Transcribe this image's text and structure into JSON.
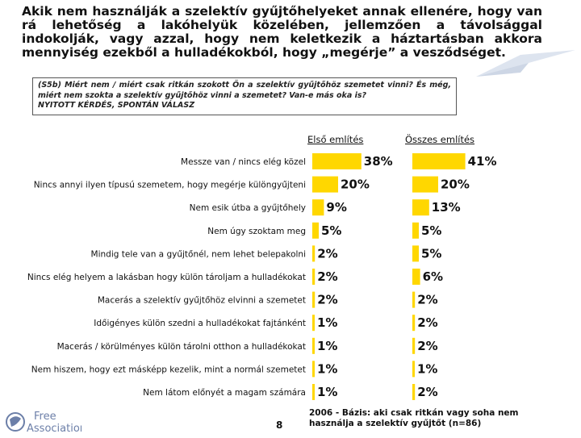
{
  "headline": "Akik nem használják a szelektív gyűjtőhelyeket annak ellenére, hogy van rá lehetőség a lakóhelyük közelében, jellemzően a távolsággal indokolják, vagy azzal, hogy nem keletkezik a háztartásban akkora mennyiség ezekből a hulladékokból, hogy „megérje” a vesződséget.",
  "question": {
    "text": "(S5b) Miért nem / miért csak ritkán szokott Ön a szelektív gyűjtőhöz szemetet vinni? És még, miért nem szokta a szelektív gyűjtőhöz vinni a szemetet? Van-e más oka is?",
    "note": "NYITOTT KÉRDÉS, SPONTÁN VÁLASZ"
  },
  "chart_data": {
    "type": "bar",
    "orientation": "horizontal",
    "categories": [
      "Messze van / nincs elég közel",
      "Nincs annyi ilyen típusú szemetem, hogy megérje különgyűjteni",
      "Nem esik útba a gyűjtőhely",
      "Nem úgy szoktam meg",
      "Mindig tele van a gyűjtőnél, nem lehet belepakolni",
      "Nincs elég helyem a lakásban hogy külön tároljam a hulladékokat",
      "Macerás a szelektív gyűjtőhöz elvinni a szemetet",
      "Időigényes külön szedni a hulladékokat fajtánként",
      "Macerás / körülményes külön tárolni otthon a hulladékokat",
      "Nem hiszem, hogy ezt másképp kezelik, mint a normál szemetet",
      "Nem látom előnyét a magam számára"
    ],
    "series": [
      {
        "name": "Első említés",
        "values": [
          38,
          20,
          9,
          5,
          2,
          2,
          2,
          1,
          1,
          1,
          1
        ]
      },
      {
        "name": "Összes említés",
        "values": [
          41,
          20,
          13,
          5,
          5,
          6,
          2,
          2,
          2,
          1,
          2
        ]
      }
    ],
    "value_suffix": "%",
    "bar_color": "#FFD700",
    "xlim": [
      0,
      100
    ]
  },
  "logo": {
    "line1": "Free",
    "line2": "Association"
  },
  "page_number": "8",
  "footnote": "2006 - Bázis: aki csak ritkán vagy soha nem használja a szelektív gyűjtőt (n=86)"
}
